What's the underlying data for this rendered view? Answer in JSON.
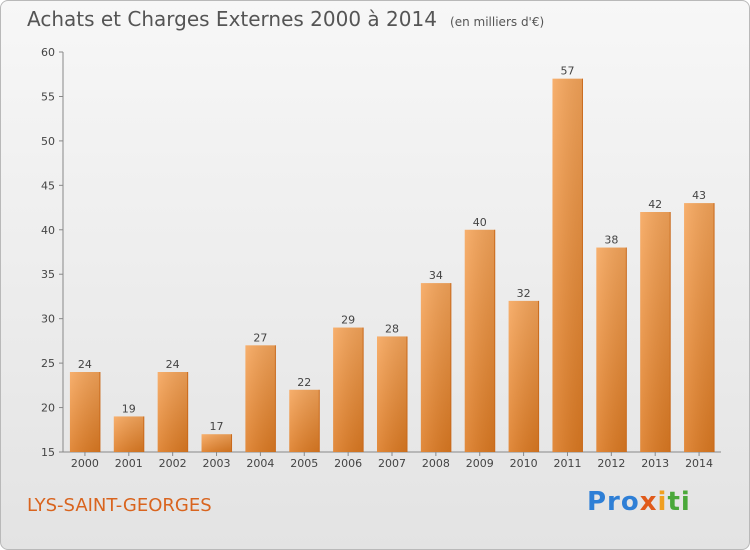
{
  "header": {
    "title": "Achats et Charges Externes 2000 à 2014",
    "unit_note": "(en milliers d'€)"
  },
  "footer": {
    "place": "LYS-SAINT-GEORGES",
    "brand_parts": [
      "Pro",
      "x",
      "i",
      "ti"
    ]
  },
  "chart_data": {
    "type": "bar",
    "title": "Achats et Charges Externes 2000 à 2014",
    "subtitle": "(en milliers d'€)",
    "categories": [
      "2000",
      "2001",
      "2002",
      "2003",
      "2004",
      "2005",
      "2006",
      "2007",
      "2008",
      "2009",
      "2010",
      "2011",
      "2012",
      "2013",
      "2014"
    ],
    "values": [
      24,
      19,
      24,
      17,
      27,
      22,
      29,
      28,
      34,
      40,
      32,
      57,
      38,
      42,
      43
    ],
    "ylim": [
      15,
      60
    ],
    "yticks": [
      15,
      20,
      25,
      30,
      35,
      40,
      45,
      50,
      55,
      60
    ],
    "grid": false,
    "legend": "none",
    "bar_color": "#f0923a"
  }
}
